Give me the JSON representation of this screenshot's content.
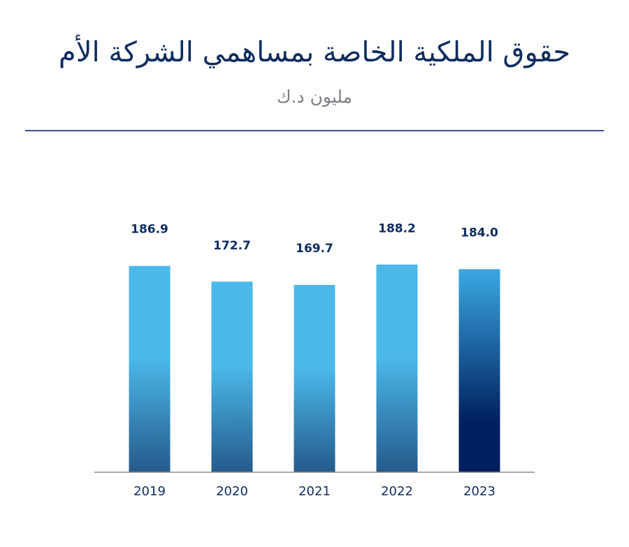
{
  "header": {
    "title": "حقوق الملكية الخاصة بمساهمي الشركة الأم",
    "subtitle": "مليون د.ك"
  },
  "colors": {
    "bar_top": "#4bb8ea",
    "bar_bottom": "#245a8a",
    "highlight_top": "#3aa8e2",
    "highlight_bottom": "#002060",
    "text": "#0f2c5e",
    "axis": "#8a8f96"
  },
  "chart_data": {
    "type": "bar",
    "categories": [
      "2019",
      "2020",
      "2021",
      "2022",
      "2023"
    ],
    "values": [
      186.9,
      172.7,
      169.7,
      188.2,
      184.0
    ],
    "value_labels": [
      "186.9",
      "172.7",
      "169.7",
      "188.2",
      "184.0"
    ],
    "title": "حقوق الملكية الخاصة بمساهمي الشركة الأم",
    "subtitle": "مليون د.ك",
    "xlabel": "",
    "ylabel": "",
    "highlight_index": 4,
    "grid": false,
    "legend": "none"
  }
}
